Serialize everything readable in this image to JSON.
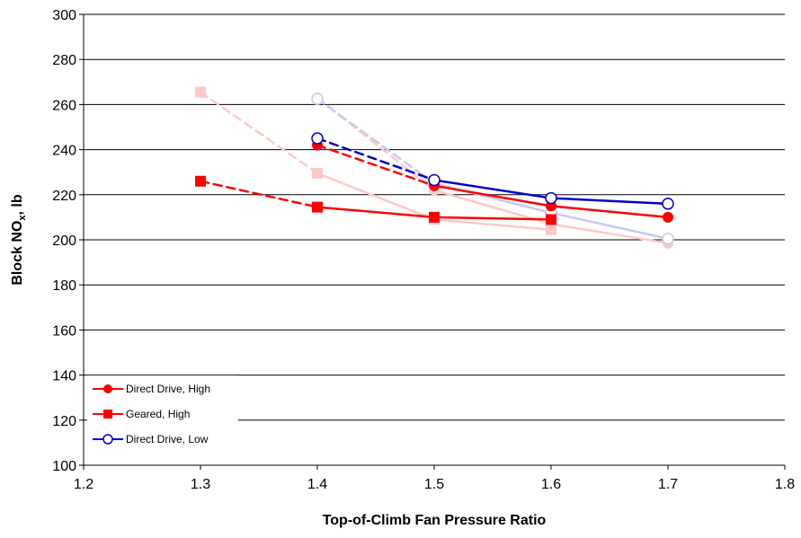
{
  "chart_data": {
    "type": "line",
    "xlabel": "Top-of-Climb Fan Pressure Ratio",
    "ylabel_main": "Block NO",
    "ylabel_sub": "x",
    "ylabel_suffix": ", lb",
    "xlim": [
      1.2,
      1.8
    ],
    "ylim": [
      100,
      300
    ],
    "xticks": [
      1.2,
      1.3,
      1.4,
      1.5,
      1.6,
      1.7,
      1.8
    ],
    "xtick_labels": [
      "1.2",
      "1.3",
      "1.4",
      "1.5",
      "1.6",
      "1.7",
      "1.8"
    ],
    "yticks": [
      100,
      120,
      140,
      160,
      180,
      200,
      220,
      240,
      260,
      280,
      300
    ],
    "ytick_labels": [
      "100",
      "120",
      "140",
      "160",
      "180",
      "200",
      "220",
      "240",
      "260",
      "280",
      "300"
    ],
    "grid": "horizontal",
    "legend_position": "bottom-left",
    "colors": {
      "red": "#ff0000",
      "blue": "#0000cc",
      "faded_red": "#ffc8c8",
      "faded_blue": "#c8c8f0"
    },
    "series": [
      {
        "name": "Direct Drive, High",
        "marker": "circle",
        "color": "#ff0000",
        "x": [
          1.4,
          1.5,
          1.6,
          1.7
        ],
        "y": [
          242,
          224,
          215,
          210
        ],
        "dashed_segments": [
          0
        ]
      },
      {
        "name": "Geared, High",
        "marker": "square",
        "color": "#ff0000",
        "x": [
          1.3,
          1.4,
          1.5,
          1.6
        ],
        "y": [
          226,
          214.5,
          210,
          209
        ],
        "dashed_segments": [
          0
        ]
      },
      {
        "name": "Direct Drive, Low",
        "marker": "open-circle",
        "color": "#0000cc",
        "x": [
          1.4,
          1.5,
          1.6,
          1.7
        ],
        "y": [
          245,
          226.5,
          218.5,
          216
        ],
        "dashed_segments": [
          0
        ]
      }
    ],
    "faded_series": [
      {
        "marker": "circle",
        "color": "#ffc8c8",
        "x": [
          1.4,
          1.5,
          1.6,
          1.7
        ],
        "y": [
          263,
          222,
          207,
          198.5
        ],
        "dashed_segments": [
          0
        ]
      },
      {
        "marker": "square",
        "color": "#ffc8c8",
        "x": [
          1.3,
          1.4,
          1.5,
          1.6
        ],
        "y": [
          265.5,
          229.5,
          209,
          204.5
        ],
        "dashed_segments": [
          0
        ]
      },
      {
        "marker": "open-circle",
        "color": "#c8c8f0",
        "x": [
          1.4,
          1.5,
          1.6,
          1.7
        ],
        "y": [
          262.5,
          225,
          212,
          200.5
        ],
        "dashed_segments": [
          0
        ]
      }
    ]
  }
}
